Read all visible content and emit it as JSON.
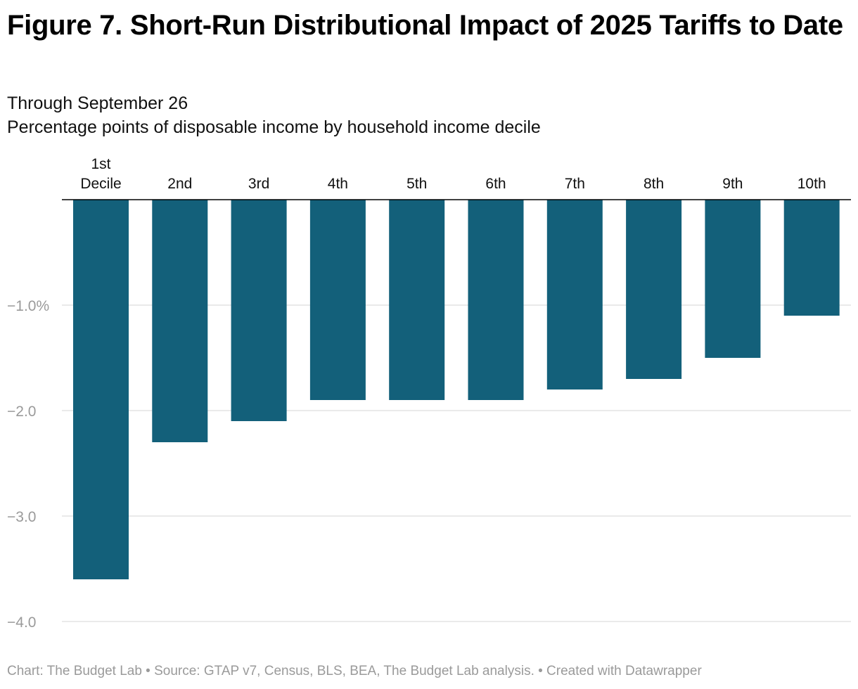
{
  "chart_data": {
    "type": "bar",
    "title": "Figure 7. Short-Run Distributional Impact of 2025 Tariffs to Date",
    "subtitle": "Through September 26",
    "description": "Percentage points of disposable income by household income decile",
    "categories": [
      [
        "1st",
        "Decile"
      ],
      [
        "2nd"
      ],
      [
        "3rd"
      ],
      [
        "4th"
      ],
      [
        "5th"
      ],
      [
        "6th"
      ],
      [
        "7th"
      ],
      [
        "8th"
      ],
      [
        "9th"
      ],
      [
        "10th"
      ]
    ],
    "values": [
      -3.6,
      -2.3,
      -2.1,
      -1.9,
      -1.9,
      -1.9,
      -1.8,
      -1.7,
      -1.5,
      -1.1
    ],
    "ylim": [
      -4.0,
      0
    ],
    "yticks": [
      {
        "value": -1.0,
        "label": "−1.0%"
      },
      {
        "value": -2.0,
        "label": "−2.0"
      },
      {
        "value": -3.0,
        "label": "−3.0"
      },
      {
        "value": -4.0,
        "label": "−4.0"
      }
    ],
    "xlabel": "",
    "ylabel": "",
    "grid": true,
    "bar_color": "#13607a"
  },
  "footer": "Chart: The Budget Lab • Source: GTAP v7, Census, BLS, BEA, The Budget Lab analysis. • Created with Datawrapper"
}
